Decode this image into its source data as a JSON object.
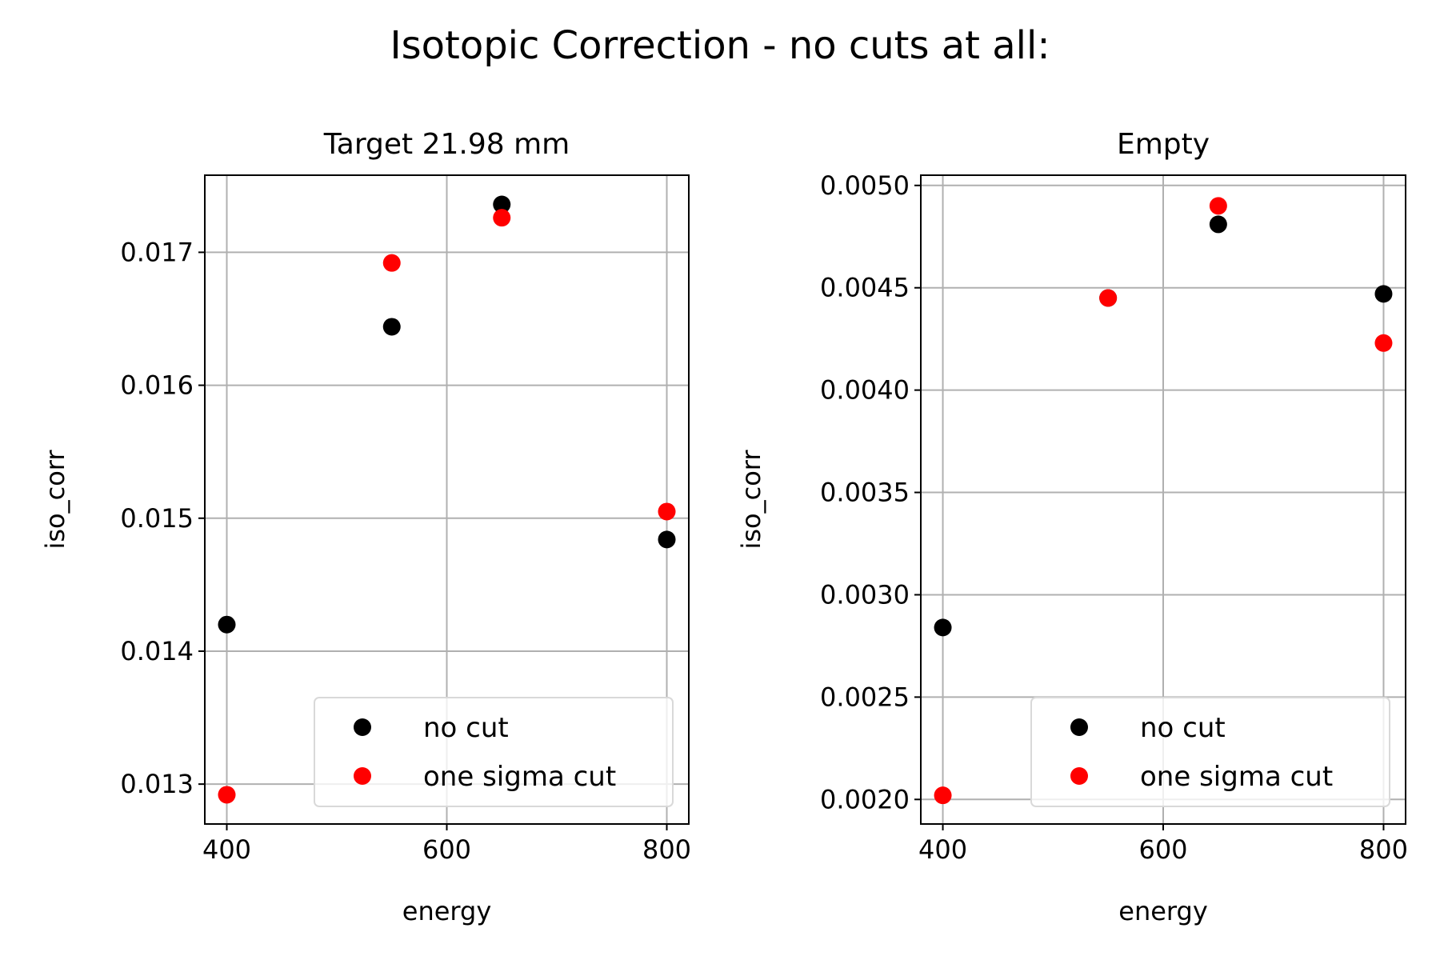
{
  "figure": {
    "title": "Isotopic Correction - no cuts at all:"
  },
  "colors": {
    "no_cut": "#000000",
    "one_sigma_cut": "#ff0000"
  },
  "chart_data": [
    {
      "type": "scatter",
      "title": "Target 21.98 mm",
      "xlabel": "energy",
      "ylabel": "iso_corr",
      "xlim": [
        380,
        820
      ],
      "ylim": [
        0.0127,
        0.01758
      ],
      "xticks": [
        400,
        600,
        800
      ],
      "xtick_labels": [
        "400",
        "600",
        "800"
      ],
      "yticks": [
        0.013,
        0.014,
        0.015,
        0.016,
        0.017
      ],
      "ytick_labels": [
        "0.013",
        "0.014",
        "0.015",
        "0.016",
        "0.017"
      ],
      "grid": true,
      "legend": "lower-right",
      "series": [
        {
          "name": "no cut",
          "color": "#000000",
          "x": [
            400,
            550,
            650,
            800
          ],
          "y": [
            0.0142,
            0.01644,
            0.01736,
            0.01484
          ]
        },
        {
          "name": "one sigma cut",
          "color": "#ff0000",
          "x": [
            400,
            550,
            650,
            800
          ],
          "y": [
            0.01292,
            0.01692,
            0.01726,
            0.01505
          ]
        }
      ]
    },
    {
      "type": "scatter",
      "title": "Empty",
      "xlabel": "energy",
      "ylabel": "iso_corr",
      "xlim": [
        380,
        820
      ],
      "ylim": [
        0.00188,
        0.00505
      ],
      "xticks": [
        400,
        600,
        800
      ],
      "xtick_labels": [
        "400",
        "600",
        "800"
      ],
      "yticks": [
        0.002,
        0.0025,
        0.003,
        0.0035,
        0.004,
        0.0045,
        0.005
      ],
      "ytick_labels": [
        "0.0020",
        "0.0025",
        "0.0030",
        "0.0035",
        "0.0040",
        "0.0045",
        "0.0050"
      ],
      "grid": true,
      "legend": "lower-right",
      "series": [
        {
          "name": "no cut",
          "color": "#000000",
          "x": [
            400,
            550,
            650,
            800
          ],
          "y": [
            0.00284,
            0.00445,
            0.00481,
            0.00447
          ]
        },
        {
          "name": "one sigma cut",
          "color": "#ff0000",
          "x": [
            400,
            550,
            650,
            800
          ],
          "y": [
            0.00202,
            0.00445,
            0.0049,
            0.00423
          ]
        }
      ]
    }
  ]
}
